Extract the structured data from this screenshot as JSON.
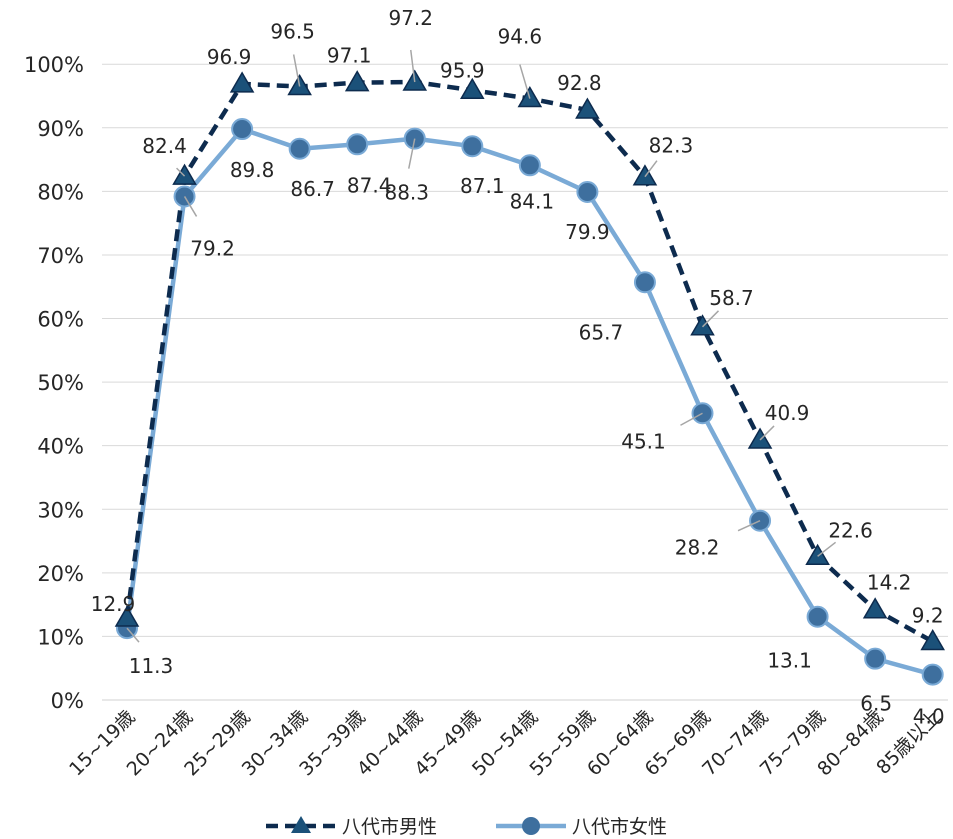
{
  "chart_data": {
    "type": "line",
    "title": "",
    "xlabel": "",
    "ylabel": "",
    "ylim": [
      0,
      100
    ],
    "yticks": [
      "0%",
      "10%",
      "20%",
      "30%",
      "40%",
      "50%",
      "60%",
      "70%",
      "80%",
      "90%",
      "100%"
    ],
    "grid": true,
    "legend_position": "bottom",
    "categories": [
      "15~19歳",
      "20~24歳",
      "25~29歳",
      "30~34歳",
      "35~39歳",
      "40~44歳",
      "45~49歳",
      "50~54歳",
      "55~59歳",
      "60~64歳",
      "65~69歳",
      "70~74歳",
      "75~79歳",
      "80~84歳",
      "85歳以上"
    ],
    "series": [
      {
        "name": "八代市男性",
        "values": [
          12.9,
          82.4,
          96.9,
          96.5,
          97.1,
          97.2,
          95.9,
          94.6,
          92.8,
          82.3,
          58.7,
          40.9,
          22.6,
          14.2,
          9.2
        ],
        "labels": [
          "12.9",
          "82.4",
          "96.9",
          "96.5",
          "97.1",
          "97.2",
          "95.9",
          "94.6",
          "92.8",
          "82.3",
          "58.7",
          "40.9",
          "22.6",
          "14.2",
          "9.2"
        ],
        "color": "#0d2b4e",
        "marker_color": "#1b5179",
        "line_style": "dashed",
        "marker": "triangle"
      },
      {
        "name": "八代市女性",
        "values": [
          11.3,
          79.2,
          89.8,
          86.7,
          87.4,
          88.3,
          87.1,
          84.1,
          79.9,
          65.7,
          45.1,
          28.2,
          13.1,
          6.5,
          4.0
        ],
        "labels": [
          "11.3",
          "79.2",
          "89.8",
          "86.7",
          "87.4",
          "88.3",
          "87.1",
          "84.1",
          "79.9",
          "65.7",
          "45.1",
          "28.2",
          "13.1",
          "6.5",
          "4.0"
        ],
        "color": "#7aaad6",
        "marker_color": "#3e6f9e",
        "line_style": "solid",
        "marker": "circle"
      }
    ]
  }
}
